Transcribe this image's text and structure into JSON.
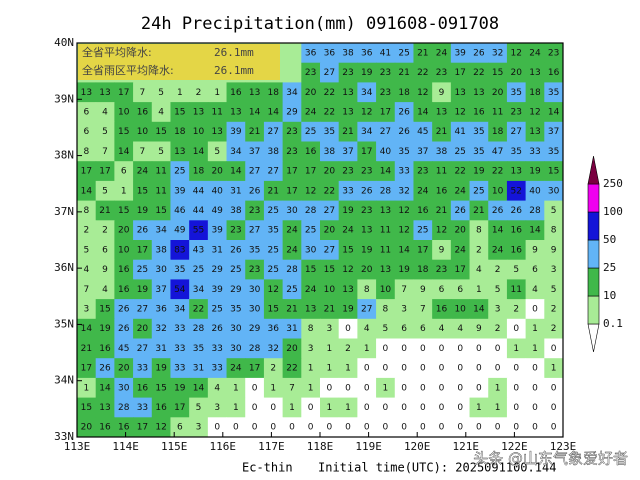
{
  "title": "24h Precipitation(mm) 091608-091708",
  "info": {
    "province_avg_label": "全省平均降水:",
    "province_avg": "26.1mm",
    "rain_area_label": "全省雨区平均降水:",
    "rain_area_avg": "26.1mm"
  },
  "map": {
    "xlim": [
      113,
      123
    ],
    "ylim": [
      33,
      40
    ],
    "xticks": [
      {
        "value": 113,
        "label": "113E"
      },
      {
        "value": 114,
        "label": "114E"
      },
      {
        "value": 115,
        "label": "115E"
      },
      {
        "value": 116,
        "label": "116E"
      },
      {
        "value": 117,
        "label": "117E"
      },
      {
        "value": 118,
        "label": "118E"
      },
      {
        "value": 119,
        "label": "119E"
      },
      {
        "value": 120,
        "label": "120E"
      },
      {
        "value": 121,
        "label": "121E"
      },
      {
        "value": 122,
        "label": "122E"
      },
      {
        "value": 123,
        "label": "123E"
      }
    ],
    "yticks": [
      {
        "value": 33,
        "label": "33N"
      },
      {
        "value": 34,
        "label": "34N"
      },
      {
        "value": 35,
        "label": "35N"
      },
      {
        "value": 36,
        "label": "36N"
      },
      {
        "value": 37,
        "label": "37N"
      },
      {
        "value": 38,
        "label": "38N"
      },
      {
        "value": 39,
        "label": "39N"
      },
      {
        "value": 40,
        "label": "40N"
      }
    ],
    "grid": [
      [
        null,
        null,
        null,
        null,
        null,
        null,
        null,
        null,
        null,
        null,
        null,
        null,
        36,
        36,
        38,
        36,
        41,
        25,
        21,
        24,
        39,
        26,
        32,
        12,
        24,
        23
      ],
      [
        null,
        null,
        null,
        null,
        null,
        null,
        null,
        null,
        null,
        null,
        null,
        null,
        23,
        27,
        23,
        19,
        23,
        21,
        22,
        23,
        17,
        22,
        15,
        20,
        13,
        16
      ],
      [
        13,
        13,
        17,
        7,
        5,
        1,
        2,
        1,
        16,
        13,
        18,
        34,
        20,
        22,
        13,
        34,
        23,
        18,
        12,
        9,
        13,
        13,
        20,
        35,
        18,
        35
      ],
      [
        6,
        4,
        10,
        16,
        4,
        15,
        13,
        11,
        13,
        14,
        14,
        29,
        24,
        22,
        13,
        12,
        17,
        26,
        14,
        13,
        12,
        16,
        11,
        23,
        12,
        14
      ],
      [
        6,
        5,
        15,
        10,
        15,
        18,
        10,
        13,
        39,
        21,
        27,
        23,
        25,
        35,
        21,
        34,
        27,
        26,
        45,
        21,
        41,
        35,
        18,
        27,
        13,
        37
      ],
      [
        8,
        7,
        14,
        7,
        5,
        13,
        14,
        5,
        34,
        37,
        38,
        23,
        16,
        38,
        37,
        17,
        40,
        35,
        37,
        38,
        25,
        35,
        47,
        35,
        33,
        35
      ],
      [
        17,
        17,
        6,
        24,
        11,
        25,
        18,
        20,
        14,
        27,
        27,
        17,
        17,
        20,
        23,
        23,
        14,
        33,
        23,
        11,
        22,
        19,
        22,
        13,
        19,
        15
      ],
      [
        14,
        5,
        1,
        15,
        11,
        39,
        44,
        40,
        31,
        26,
        21,
        17,
        12,
        22,
        33,
        26,
        28,
        32,
        24,
        16,
        24,
        25,
        10,
        52,
        40,
        30
      ],
      [
        8,
        21,
        15,
        19,
        15,
        46,
        44,
        49,
        38,
        23,
        25,
        30,
        28,
        27,
        19,
        23,
        13,
        12,
        16,
        21,
        26,
        21,
        26,
        26,
        28,
        5
      ],
      [
        2,
        2,
        20,
        26,
        34,
        49,
        55,
        39,
        23,
        27,
        35,
        24,
        25,
        20,
        24,
        13,
        11,
        12,
        25,
        12,
        20,
        8,
        14,
        16,
        14,
        8
      ],
      [
        5,
        6,
        10,
        17,
        38,
        83,
        43,
        31,
        26,
        35,
        25,
        24,
        30,
        27,
        15,
        19,
        11,
        14,
        17,
        9,
        24,
        2,
        24,
        16,
        9,
        9
      ],
      [
        4,
        9,
        16,
        25,
        30,
        35,
        25,
        29,
        25,
        23,
        25,
        28,
        15,
        15,
        12,
        20,
        13,
        19,
        18,
        23,
        17,
        4,
        2,
        5,
        6,
        3
      ],
      [
        7,
        4,
        16,
        19,
        37,
        54,
        34,
        39,
        29,
        30,
        12,
        25,
        24,
        10,
        13,
        8,
        10,
        7,
        9,
        6,
        6,
        1,
        5,
        11,
        4,
        5
      ],
      [
        3,
        15,
        26,
        27,
        36,
        34,
        22,
        25,
        35,
        30,
        15,
        21,
        13,
        21,
        19,
        27,
        8,
        3,
        7,
        16,
        10,
        14,
        3,
        2,
        0,
        2
      ],
      [
        14,
        19,
        26,
        20,
        32,
        33,
        28,
        26,
        30,
        29,
        36,
        31,
        8,
        3,
        0,
        4,
        5,
        6,
        6,
        4,
        4,
        9,
        2,
        0,
        1,
        2
      ],
      [
        21,
        16,
        45,
        27,
        31,
        33,
        35,
        33,
        30,
        28,
        32,
        20,
        3,
        1,
        2,
        1,
        0,
        0,
        0,
        0,
        0,
        0,
        0,
        1,
        1,
        0
      ],
      [
        17,
        26,
        20,
        33,
        19,
        33,
        31,
        33,
        24,
        17,
        2,
        22,
        1,
        1,
        1,
        0,
        0,
        0,
        0,
        0,
        0,
        0,
        0,
        0,
        0,
        1
      ],
      [
        1,
        14,
        30,
        16,
        15,
        19,
        14,
        4,
        1,
        0,
        1,
        7,
        1,
        0,
        0,
        0,
        1,
        0,
        0,
        0,
        0,
        0,
        1,
        0,
        0,
        0
      ],
      [
        15,
        13,
        28,
        33,
        16,
        17,
        5,
        3,
        1,
        0,
        0,
        1,
        0,
        1,
        1,
        0,
        0,
        0,
        0,
        0,
        0,
        1,
        1,
        0,
        0,
        0
      ],
      [
        20,
        16,
        16,
        17,
        12,
        6,
        3,
        0,
        0,
        0,
        0,
        0,
        0,
        0,
        0,
        0,
        0,
        0,
        0,
        0,
        0,
        0,
        0,
        0,
        0,
        0
      ]
    ]
  },
  "legend": {
    "levels": [
      0.1,
      10,
      25,
      50,
      100,
      250
    ],
    "colors": [
      "#ffffff",
      "#a8ec96",
      "#40b84a",
      "#62b4f6",
      "#1414d8",
      "#f000f0",
      "#7a0040"
    ]
  },
  "footer": {
    "model": "Ec-thin",
    "init": "Initial time(UTC): 2025091100.144"
  },
  "watermark": "头条 @山东气象爱好者"
}
